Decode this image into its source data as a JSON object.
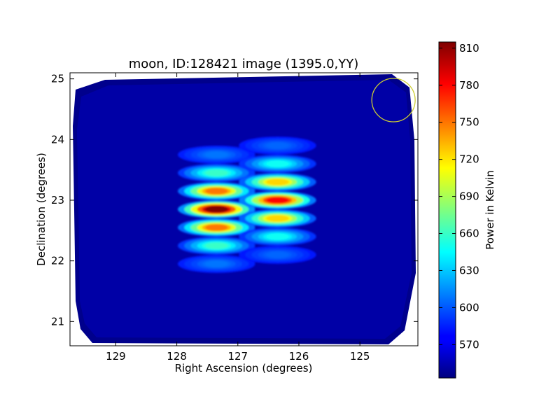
{
  "chart_data": {
    "type": "heatmap",
    "title": "moon, ID:128421 image (1395.0,YY)",
    "xlabel": "Right Ascension (degrees)",
    "ylabel": "Declination (degrees)",
    "x_ticks": [
      "129",
      "128",
      "127",
      "126",
      "125"
    ],
    "x_tick_values": [
      129,
      128,
      127,
      126,
      125
    ],
    "y_ticks": [
      "25",
      "24",
      "23",
      "22",
      "21"
    ],
    "y_tick_values": [
      25,
      24,
      23,
      22,
      21
    ],
    "xlim": [
      129.75,
      124.05
    ],
    "ylim": [
      20.6,
      25.1
    ],
    "x_axis_inverted": true,
    "colormap": "jet",
    "colorbar": {
      "label": "Power in Kelvin",
      "ticks": [
        "570",
        "600",
        "630",
        "660",
        "690",
        "720",
        "750",
        "780",
        "810"
      ],
      "tick_values": [
        570,
        600,
        630,
        660,
        690,
        720,
        750,
        780,
        810
      ],
      "vmin": 543,
      "vmax": 815
    },
    "background_level": 580,
    "sources": [
      {
        "ra": 127.35,
        "dec": 22.85,
        "peak": 815
      },
      {
        "ra": 126.35,
        "dec": 23.0,
        "peak": 780
      }
    ],
    "beam_circle": {
      "ra": 124.45,
      "dec": 24.65,
      "color": "#cccc33"
    }
  }
}
